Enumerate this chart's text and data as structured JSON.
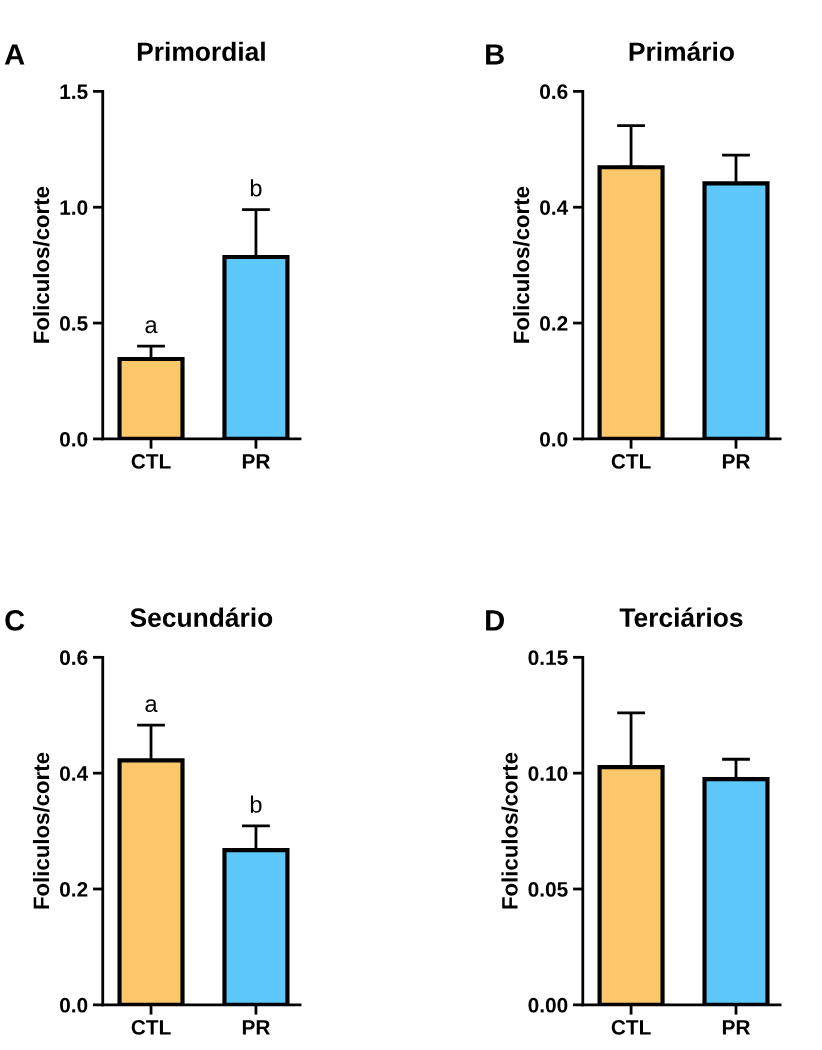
{
  "chart_data": [
    {
      "type": "bar",
      "title": "Primordial",
      "ylabel": "Foliculos/corte",
      "categories": [
        "CTL",
        "PR"
      ],
      "values": [
        0.345,
        0.785
      ],
      "colors": [
        "#fcc86a",
        "#5ec8fa"
      ],
      "errors": [
        [
          0.345,
          0.4
        ],
        [
          0.785,
          0.99
        ]
      ],
      "ylim": [
        0,
        1.5
      ],
      "yticks": [
        {
          "value": 0,
          "label": "0.0"
        },
        {
          "value": 0.5,
          "label": "0.5"
        },
        {
          "value": 1,
          "label": "1.0"
        },
        {
          "value": 1.5,
          "label": "1.5"
        }
      ],
      "annotations": [
        "A",
        {
          "text": "a",
          "x": "CTL",
          "y": 0.4
        },
        {
          "text": "b",
          "x": "PR",
          "y": 0.99
        }
      ]
    },
    {
      "type": "bar",
      "title": "Primário",
      "ylabel": "Foliculos/corte",
      "categories": [
        "CTL",
        "PR"
      ],
      "values": [
        0.469,
        0.441
      ],
      "colors": [
        "#fcc86a",
        "#5ec8fa"
      ],
      "errors": [
        [
          0.469,
          0.541
        ],
        [
          0.441,
          0.49
        ]
      ],
      "ylim": [
        0,
        0.6
      ],
      "yticks": [
        {
          "value": 0,
          "label": "0.0"
        },
        0.2,
        0.4,
        0.6
      ],
      "annotations": [
        "B"
      ]
    },
    {
      "type": "bar",
      "title": "Secundário",
      "ylabel": "Foliculos/corte",
      "categories": [
        "CTL",
        "PR"
      ],
      "values": [
        0.422,
        0.267
      ],
      "colors": [
        "#fcc86a",
        "#5ec8fa"
      ],
      "errors": [
        [
          0.422,
          0.483
        ],
        [
          0.267,
          0.309
        ]
      ],
      "ylim": [
        0,
        0.6
      ],
      "yticks": [
        {
          "value": 0,
          "label": "0.0"
        },
        0.2,
        0.4,
        0.6
      ],
      "annotations": [
        "C",
        {
          "text": "a",
          "x": "CTL",
          "y": 0.483
        },
        {
          "text": "b",
          "x": "PR",
          "y": 0.309
        }
      ]
    },
    {
      "type": "bar",
      "title": "Terciários",
      "ylabel": "Foliculos/corte",
      "categories": [
        "CTL",
        "PR"
      ],
      "values": [
        0.1026,
        0.0974
      ],
      "colors": [
        "#fcc86a",
        "#5ec8fa"
      ],
      "errors": [
        [
          0.1026,
          0.126
        ],
        [
          0.0974,
          0.106
        ]
      ],
      "ylim": [
        0,
        0.15
      ],
      "yticks": [
        {
          "value": 0,
          "label": "0.00"
        },
        0.05,
        {
          "value": 0.1,
          "label": "0.10"
        },
        0.15
      ],
      "annotations": [
        "D"
      ]
    }
  ]
}
